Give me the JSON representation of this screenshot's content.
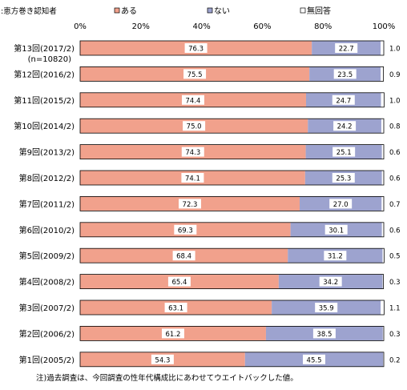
{
  "chart_data": {
    "type": "bar",
    "orientation": "horizontal",
    "stacked": true,
    "percent_stacked": true,
    "title": "",
    "corner_label": ":恵方巻き認知者",
    "xlim": [
      0,
      100
    ],
    "x_ticks": [
      "0%",
      "20%",
      "40%",
      "60%",
      "80%",
      "100%"
    ],
    "categories": [
      "第13回(2017/2)",
      "第12回(2016/2)",
      "第11回(2015/2)",
      "第10回(2014/2)",
      "第9回(2013/2)",
      "第8回(2012/2)",
      "第7回(2011/2)",
      "第6回(2010/2)",
      "第5回(2009/2)",
      "第4回(2008/2)",
      "第3回(2007/2)",
      "第2回(2006/2)",
      "第1回(2005/2)"
    ],
    "category_sublabels": [
      "(n=10820)",
      "",
      "",
      "",
      "",
      "",
      "",
      "",
      "",
      "",
      "",
      "",
      ""
    ],
    "series": [
      {
        "name": "ある",
        "color": "#f1a18c",
        "values": [
          76.3,
          75.5,
          74.4,
          75.0,
          74.3,
          74.1,
          72.3,
          69.3,
          68.4,
          65.4,
          63.1,
          61.2,
          54.3
        ],
        "labels": [
          "76.3",
          "75.5",
          "74.4",
          "75.0",
          "74.3",
          "74.1",
          "72.3",
          "69.3",
          "68.4",
          "65.4",
          "63.1",
          "61.2",
          "54.3"
        ]
      },
      {
        "name": "ない",
        "color": "#9da3cf",
        "values": [
          22.7,
          23.5,
          24.7,
          24.2,
          25.1,
          25.3,
          27.0,
          30.1,
          31.2,
          34.2,
          35.9,
          38.5,
          45.5
        ],
        "labels": [
          "22.7",
          "23.5",
          "24.7",
          "24.2",
          "25.1",
          "25.3",
          "27.0",
          "30.1",
          "31.2",
          "34.2",
          "35.9",
          "38.5",
          "45.5"
        ]
      },
      {
        "name": "無回答",
        "color": "#ffffff",
        "values": [
          1.0,
          0.9,
          1.0,
          0.8,
          0.6,
          0.6,
          0.7,
          0.6,
          0.5,
          0.3,
          1.1,
          0.3,
          0.2
        ],
        "labels": [
          "1.0",
          "0.9",
          "1.0",
          "0.8",
          "0.6",
          "0.6",
          "0.7",
          "0.6",
          "0.5",
          "0.3",
          "1.1",
          "0.3",
          "0.2"
        ]
      }
    ],
    "legend_position": "top",
    "grid": false,
    "footnote": "注)過去調査は、今回調査の性年代構成比にあわせてウエイトバックした値。"
  }
}
